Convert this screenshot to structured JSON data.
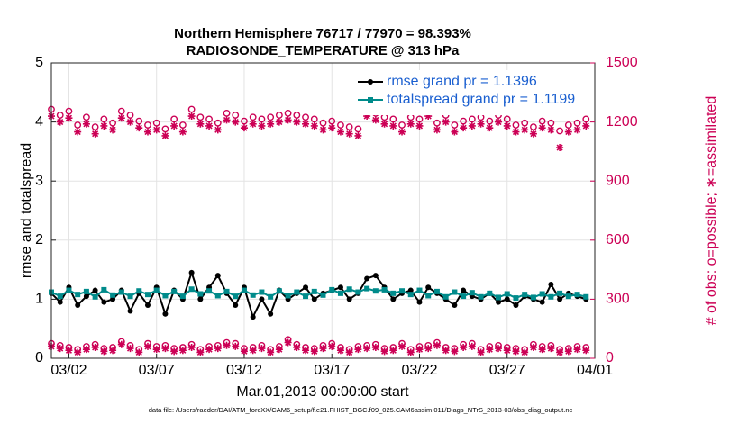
{
  "chart_data": {
    "type": "line",
    "title": "Northern Hemisphere 76717 / 77970 = 98.393%",
    "subtitle": "RADIOSONDE_TEMPERATURE @ 313 hPa",
    "x_label": "Mar.01,2013 00:00:00 start",
    "y_label": "rmse and totalspread",
    "y2_label": "# of obs: o=possible; ∗=assimilated",
    "footnote": "data file: /Users/raeder/DAI/ATM_forcXX/CAM6_setup/f.e21.FHIST_BGC.f09_025.CAM6assim.011/Diags_NTrS_2013-03/obs_diag_output.nc",
    "x": [
      1,
      1.5,
      2,
      2.5,
      3,
      3.5,
      4,
      4.5,
      5,
      5.5,
      6,
      6.5,
      7,
      7.5,
      8,
      8.5,
      9,
      9.5,
      10,
      10.5,
      11,
      11.5,
      12,
      12.5,
      13,
      13.5,
      14,
      14.5,
      15,
      15.5,
      16,
      16.5,
      17,
      17.5,
      18,
      18.5,
      19,
      19.5,
      20,
      20.5,
      21,
      21.5,
      22,
      22.5,
      23,
      23.5,
      24,
      24.5,
      25,
      25.5,
      26,
      26.5,
      27,
      27.5,
      28,
      28.5,
      29,
      29.5,
      30,
      30.5,
      31,
      31.5
    ],
    "xlim": [
      1,
      32
    ],
    "xticks": [
      {
        "value": 2,
        "label": "03/02"
      },
      {
        "value": 7,
        "label": "03/07"
      },
      {
        "value": 12,
        "label": "03/12"
      },
      {
        "value": 17,
        "label": "03/17"
      },
      {
        "value": 22,
        "label": "03/22"
      },
      {
        "value": 27,
        "label": "03/27"
      },
      {
        "value": 32,
        "label": "04/01"
      }
    ],
    "ylim": [
      0,
      5
    ],
    "yticks": [
      0,
      1,
      2,
      3,
      4,
      5
    ],
    "y2lim": [
      0,
      1500
    ],
    "y2ticks": [
      0,
      300,
      600,
      900,
      1200,
      1500
    ],
    "y2_color": "#cc0055",
    "grid": true,
    "legend": "upper right",
    "series": [
      {
        "name": "rmse grand pr = 1.1396",
        "color": "#000000",
        "marker": "circle",
        "line": true,
        "values": [
          1.1,
          0.95,
          1.2,
          0.9,
          1.05,
          1.15,
          0.95,
          1.0,
          1.15,
          0.8,
          1.1,
          0.9,
          1.2,
          0.75,
          1.15,
          1.0,
          1.45,
          1.0,
          1.2,
          1.4,
          1.1,
          0.9,
          1.2,
          0.7,
          1.0,
          0.75,
          1.15,
          1.0,
          1.1,
          1.2,
          1.0,
          1.1,
          1.15,
          1.2,
          1.0,
          1.1,
          1.35,
          1.4,
          1.2,
          1.0,
          1.1,
          1.15,
          0.95,
          1.2,
          1.1,
          1.0,
          0.9,
          1.15,
          1.05,
          1.0,
          1.1,
          0.95,
          1.0,
          0.9,
          1.05,
          1.0,
          0.95,
          1.25,
          1.0,
          1.1,
          1.05,
          1.0
        ]
      },
      {
        "name": "totalspread grand pr = 1.1199",
        "color": "#008b8b",
        "marker": "square",
        "line": true,
        "values": [
          1.12,
          1.05,
          1.15,
          1.08,
          1.13,
          1.04,
          1.16,
          1.07,
          1.12,
          1.05,
          1.14,
          1.08,
          1.15,
          1.06,
          1.13,
          1.05,
          1.17,
          1.09,
          1.14,
          1.06,
          1.13,
          1.05,
          1.15,
          1.07,
          1.12,
          1.04,
          1.14,
          1.06,
          1.12,
          1.05,
          1.13,
          1.07,
          1.16,
          1.1,
          1.17,
          1.12,
          1.18,
          1.14,
          1.16,
          1.1,
          1.14,
          1.08,
          1.15,
          1.06,
          1.13,
          1.04,
          1.12,
          1.05,
          1.11,
          1.04,
          1.1,
          1.03,
          1.09,
          1.02,
          1.08,
          1.03,
          1.09,
          1.04,
          1.1,
          1.05,
          1.08,
          1.04
        ]
      },
      {
        "color": "#cc0055",
        "marker": "open-circle",
        "line": false,
        "axis": "y2",
        "values": [
          1260,
          1230,
          1250,
          1180,
          1220,
          1170,
          1210,
          1190,
          1250,
          1230,
          1200,
          1180,
          1190,
          1160,
          1210,
          1180,
          1260,
          1220,
          1210,
          1190,
          1240,
          1230,
          1200,
          1220,
          1210,
          1220,
          1230,
          1240,
          1230,
          1220,
          1210,
          1190,
          1200,
          1180,
          1170,
          1160,
          1260,
          1240,
          1220,
          1210,
          1180,
          1220,
          1210,
          1260,
          1190,
          1230,
          1180,
          1200,
          1210,
          1220,
          1200,
          1230,
          1210,
          1180,
          1190,
          1170,
          1200,
          1190,
          1150,
          1180,
          1190,
          1210
        ]
      },
      {
        "color": "#cc0055",
        "marker": "asterisk",
        "line": false,
        "axis": "y2",
        "values": [
          1230,
          1200,
          1220,
          1150,
          1190,
          1140,
          1180,
          1160,
          1220,
          1200,
          1170,
          1150,
          1160,
          1130,
          1180,
          1150,
          1230,
          1190,
          1180,
          1160,
          1210,
          1200,
          1170,
          1190,
          1180,
          1190,
          1200,
          1210,
          1200,
          1190,
          1180,
          1160,
          1170,
          1150,
          1140,
          1130,
          1230,
          1210,
          1190,
          1180,
          1150,
          1190,
          1180,
          1230,
          1160,
          1200,
          1150,
          1170,
          1180,
          1190,
          1170,
          1200,
          1180,
          1150,
          1160,
          1140,
          1170,
          1160,
          1070,
          1150,
          1160,
          1180
        ]
      },
      {
        "color": "#cc0055",
        "marker": "open-circle",
        "line": false,
        "axis": "y2",
        "values": [
          70,
          60,
          50,
          40,
          55,
          65,
          45,
          50,
          80,
          60,
          40,
          70,
          55,
          60,
          45,
          50,
          65,
          40,
          55,
          60,
          75,
          70,
          45,
          50,
          60,
          40,
          55,
          90,
          65,
          50,
          45,
          60,
          70,
          50,
          40,
          55,
          60,
          65,
          45,
          50,
          70,
          40,
          55,
          60,
          75,
          50,
          45,
          65,
          70,
          40,
          55,
          60,
          50,
          45,
          40,
          65,
          55,
          60,
          40,
          45,
          55,
          50
        ]
      },
      {
        "color": "#cc0055",
        "marker": "asterisk",
        "line": false,
        "axis": "y2",
        "values": [
          60,
          50,
          40,
          30,
          45,
          55,
          35,
          40,
          70,
          50,
          30,
          60,
          45,
          50,
          35,
          40,
          55,
          30,
          45,
          50,
          65,
          60,
          35,
          40,
          50,
          30,
          45,
          80,
          55,
          40,
          35,
          50,
          60,
          40,
          30,
          45,
          50,
          55,
          35,
          40,
          60,
          30,
          45,
          50,
          65,
          40,
          35,
          55,
          60,
          30,
          45,
          50,
          40,
          35,
          30,
          55,
          45,
          50,
          30,
          35,
          45,
          40
        ]
      }
    ]
  }
}
